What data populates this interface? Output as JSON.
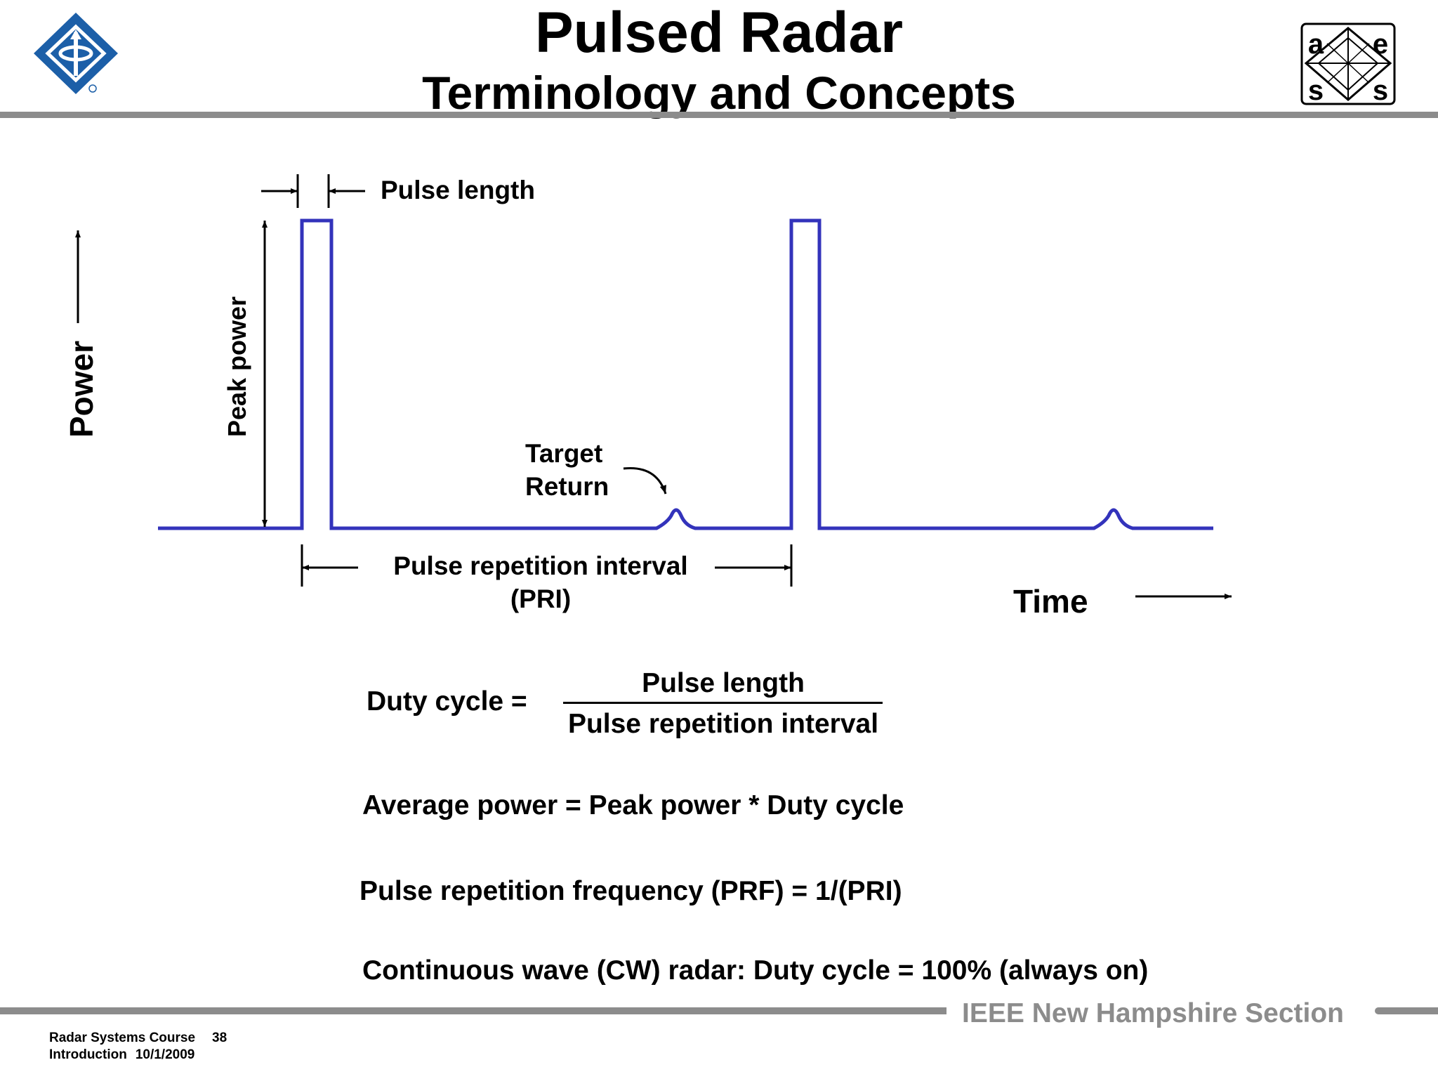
{
  "header": {
    "title": "Pulsed Radar",
    "subtitle": "Terminology and Concepts",
    "left_logo": "ieee-logo-icon",
    "right_logo": {
      "letters": [
        "a",
        "e",
        "s",
        "s"
      ]
    }
  },
  "diagram": {
    "y_axis_label": "Power",
    "x_axis_label": "Time",
    "pulse_length_label": "Pulse length",
    "peak_power_label": "Peak power",
    "target_return_label": [
      "Target",
      "Return"
    ],
    "pri_label": [
      "Pulse repetition interval",
      "(PRI)"
    ],
    "signal_color": "#3333bb"
  },
  "equations": {
    "duty_cycle_lhs": "Duty cycle =",
    "duty_cycle_numerator": "Pulse length",
    "duty_cycle_denominator": "Pulse repetition interval",
    "average_power": "Average power = Peak power * Duty cycle",
    "prf": "Pulse repetition frequency (PRF) = 1/(PRI)",
    "cw": "Continuous wave (CW) radar:  Duty cycle = 100%  (always on)"
  },
  "footer": {
    "org": "IEEE New Hampshire Section",
    "course": "Radar Systems Course",
    "page": "38",
    "section": "Introduction",
    "date": "10/1/2009"
  }
}
